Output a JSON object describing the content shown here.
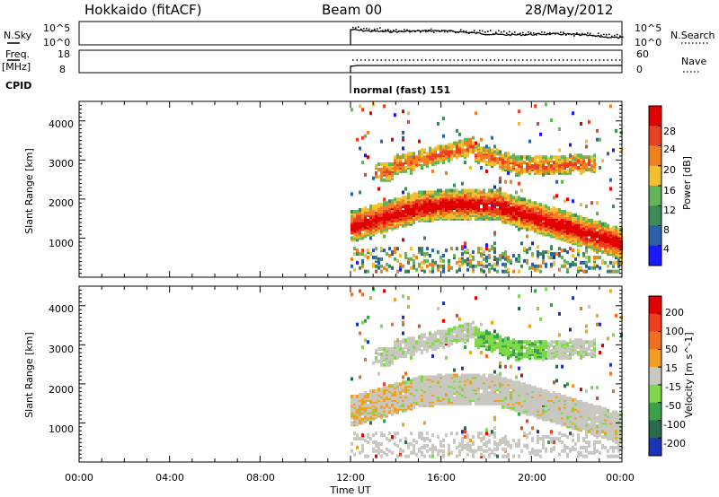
{
  "header": {
    "station": "Hokkaido (fitACF)",
    "beam": "Beam 00",
    "date": "28/May/2012"
  },
  "top_panels": {
    "nsky_label": "N.Sky",
    "nsearch_label": "N.Search",
    "nsky_ticks": [
      "10^5",
      "10^0"
    ],
    "nsky_right_ticks": [
      "10^5",
      "10^0"
    ],
    "freq_label": "Freq.",
    "freq_unit": "[MHz]",
    "freq_ticks": [
      "18",
      "8"
    ],
    "nave_label": "Nave",
    "nave_ticks": [
      "60",
      "0"
    ],
    "cpid_label": "CPID",
    "cpid_value": "normal (fast) 151"
  },
  "chart_data": [
    {
      "type": "heatmap",
      "panel": "power",
      "ylabel": "Slant Range [km]",
      "y_ticks": [
        "1000",
        "2000",
        "3000",
        "4000"
      ],
      "ylim": [
        0,
        4500
      ],
      "colorbar_label": "Power [dB]",
      "colorbar_ticks": [
        "4",
        "8",
        "12",
        "16",
        "20",
        "24",
        "28"
      ],
      "colorbar_colors": [
        "#1a1aff",
        "#2a62a8",
        "#3d8a5a",
        "#64b45c",
        "#f0c030",
        "#f08020",
        "#e84020",
        "#e00000"
      ],
      "data_start_time": "12:00",
      "bands": [
        {
          "name": "main echo band",
          "approx_range_km": [
            900,
            1900
          ],
          "power": "high"
        },
        {
          "name": "upper echo band",
          "approx_range_km": [
            2500,
            3400
          ],
          "power": "medium"
        }
      ]
    },
    {
      "type": "heatmap",
      "panel": "velocity",
      "ylabel": "Slant Range [km]",
      "y_ticks": [
        "1000",
        "2000",
        "3000",
        "4000"
      ],
      "ylim": [
        0,
        4500
      ],
      "colorbar_label": "Velocity [m s^-1]",
      "colorbar_ticks": [
        "200",
        "100",
        "50",
        "15",
        "-15",
        "-50",
        "-100",
        "-200"
      ],
      "colorbar_colors": [
        "#1c34b4",
        "#2a6a4a",
        "#3aa04a",
        "#7ed84a",
        "#c8c8c0",
        "#f0a020",
        "#f07020",
        "#f04020",
        "#e00000"
      ],
      "data_start_time": "12:00"
    }
  ],
  "x_axis": {
    "label": "Time UT",
    "ticks": [
      "00:00",
      "04:00",
      "08:00",
      "12:00",
      "16:00",
      "20:00",
      "00:00"
    ]
  }
}
